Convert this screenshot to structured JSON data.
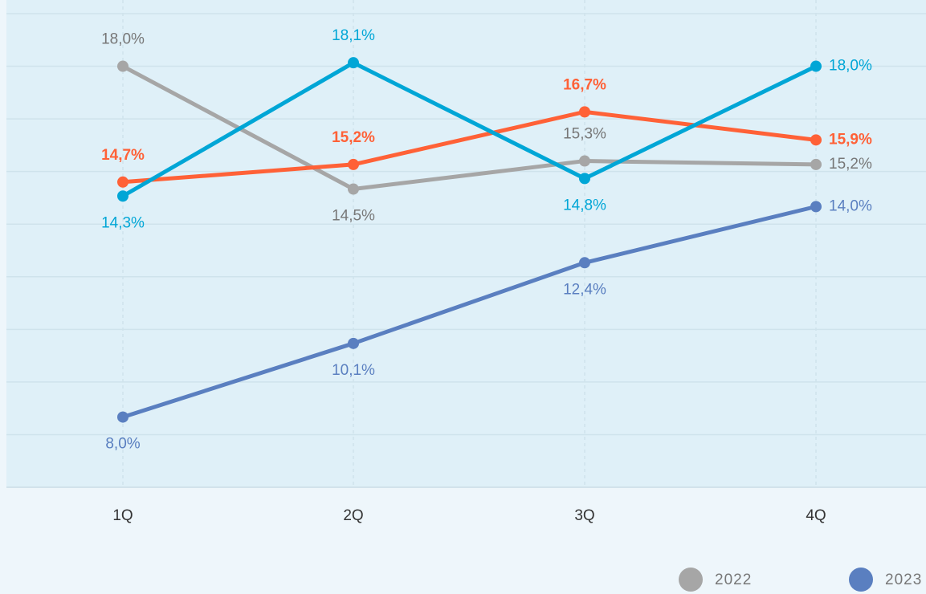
{
  "chart_data": {
    "type": "line",
    "categories": [
      "1Q",
      "2Q",
      "3Q",
      "4Q"
    ],
    "series": [
      {
        "name": "2022",
        "color": "#a6a6a6",
        "values": [
          18.0,
          14.5,
          15.3,
          15.2
        ],
        "value_labels": [
          "18,0%",
          "14,5%",
          "15,3%",
          "15,2%"
        ]
      },
      {
        "name": "2023",
        "color": "#5a7fc0",
        "values": [
          8.0,
          10.1,
          12.4,
          14.0
        ],
        "value_labels": [
          "8,0%",
          "10,1%",
          "12,4%",
          "14,0%"
        ]
      },
      {
        "color": "#00a6d6",
        "values": [
          14.3,
          18.1,
          14.8,
          18.0
        ],
        "value_labels": [
          "14,3%",
          "18,1%",
          "14,8%",
          "18,0%"
        ]
      },
      {
        "color": "#ff6137",
        "values": [
          14.7,
          15.2,
          16.7,
          15.9
        ],
        "value_labels": [
          "14,7%",
          "15,2%",
          "16,7%",
          "15,9%"
        ]
      }
    ],
    "ylim": [
      6,
      19.5
    ],
    "yticks": [
      6,
      7.5,
      9,
      10.5,
      12,
      13.5,
      15,
      16.5,
      18,
      19.5
    ],
    "grid": true
  }
}
